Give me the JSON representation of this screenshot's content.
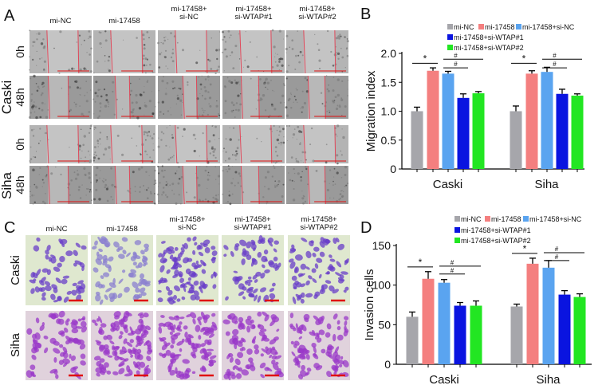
{
  "groups": [
    "mi-NC",
    "mi-17458",
    "mi-17458+\nsi-NC",
    "mi-17458+\nsi-WTAP#1",
    "mi-17458+\nsi-WTAP#2"
  ],
  "panelA": {
    "letter": "A",
    "cell_lines": [
      "Caski",
      "Siha"
    ],
    "timepoints": [
      "0h",
      "48h"
    ]
  },
  "panelC": {
    "letter": "C",
    "cell_lines": [
      "Caski",
      "Siha"
    ]
  },
  "colors": {
    "mi-NC": "#a6a6ab",
    "mi-17458": "#f47f7f",
    "mi-17458+si-NC": "#5aa4f0",
    "mi-17458+si-WTAP#1": "#0a14e0",
    "mi-17458+si-WTAP#2": "#22e622",
    "scratch_line": "#e0485a",
    "scale_bar": "#e01010"
  },
  "chart_data": [
    {
      "panel": "B",
      "type": "bar",
      "ylabel": "Migration index",
      "xlabel": "",
      "categories": [
        "Caski",
        "Siha"
      ],
      "ylim": [
        0,
        2.0
      ],
      "yticks": [
        "0",
        "0.5",
        "1.0",
        "1.5",
        "2.0"
      ],
      "ytick_values": [
        0,
        0.5,
        1.0,
        1.5,
        2.0
      ],
      "legend": "top",
      "series": [
        {
          "name": "mi-NC",
          "values": [
            1.0,
            1.0
          ],
          "errors": [
            0.07,
            0.09
          ]
        },
        {
          "name": "mi-17458",
          "values": [
            1.7,
            1.65
          ],
          "errors": [
            0.05,
            0.05
          ]
        },
        {
          "name": "mi-17458+si-NC",
          "values": [
            1.65,
            1.68
          ],
          "errors": [
            0.04,
            0.08
          ]
        },
        {
          "name": "mi-17458+si-WTAP#1",
          "values": [
            1.23,
            1.3
          ],
          "errors": [
            0.07,
            0.08
          ]
        },
        {
          "name": "mi-17458+si-WTAP#2",
          "values": [
            1.31,
            1.27
          ],
          "errors": [
            0.03,
            0.03
          ]
        }
      ],
      "significance": [
        {
          "symbol": "*",
          "from": 0,
          "to": 1,
          "level": 1.83
        },
        {
          "symbol": "#",
          "from": 2,
          "to": 3,
          "level": 1.75
        },
        {
          "symbol": "#",
          "from": 2,
          "to": 4,
          "level": 1.9
        }
      ]
    },
    {
      "panel": "D",
      "type": "bar",
      "ylabel": "Invasion cells",
      "xlabel": "",
      "categories": [
        "Caski",
        "Siha"
      ],
      "ylim": [
        0,
        150
      ],
      "yticks": [
        "0",
        "50",
        "100",
        "150"
      ],
      "ytick_values": [
        0,
        50,
        100,
        150
      ],
      "legend": "top",
      "series": [
        {
          "name": "mi-NC",
          "values": [
            60,
            73
          ],
          "errors": [
            6,
            3
          ]
        },
        {
          "name": "mi-17458",
          "values": [
            108,
            127
          ],
          "errors": [
            9,
            7
          ]
        },
        {
          "name": "mi-17458+si-NC",
          "values": [
            103,
            122
          ],
          "errors": [
            4,
            9
          ]
        },
        {
          "name": "mi-17458+si-WTAP#1",
          "values": [
            74,
            88
          ],
          "errors": [
            4,
            5
          ]
        },
        {
          "name": "mi-17458+si-WTAP#2",
          "values": [
            74,
            85
          ],
          "errors": [
            6,
            4
          ]
        }
      ],
      "significance": [
        {
          "symbol": "*",
          "from": 0,
          "to": 1,
          "level": [
            123,
            140
          ]
        },
        {
          "symbol": "#",
          "from": 2,
          "to": 3,
          "level": [
            114,
            131
          ]
        },
        {
          "symbol": "#",
          "from": 2,
          "to": 4,
          "level": [
            124,
            141
          ]
        }
      ]
    }
  ]
}
